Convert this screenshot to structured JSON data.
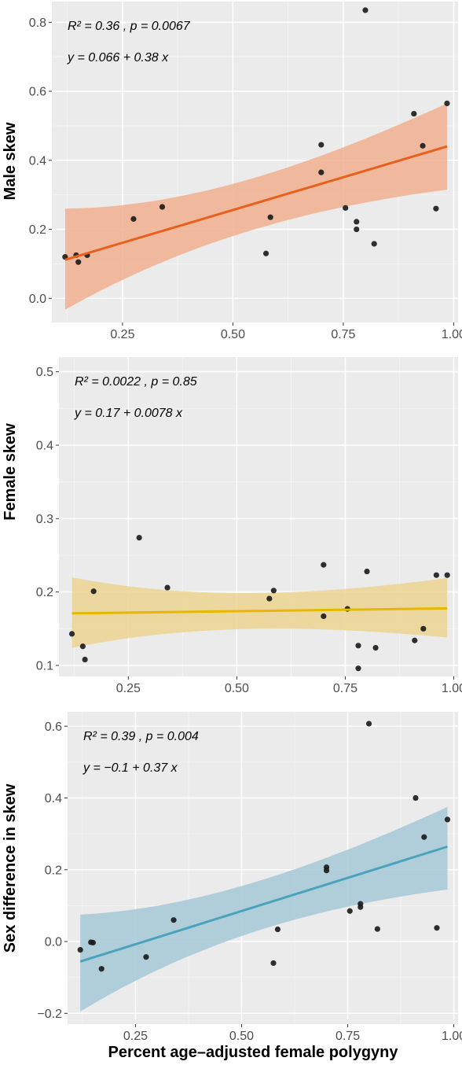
{
  "xlabel": "Percent age–adjusted female polygyny",
  "chart_data": [
    {
      "type": "scatter",
      "ylabel": "Male skew",
      "annotations": [
        "R² = 0.36 , p = 0.0067",
        "y = 0.066 + 0.38 x"
      ],
      "xlim": [
        0.09,
        1.01
      ],
      "ylim": [
        -0.07,
        0.86
      ],
      "xticks": [
        "0.25",
        "0.50",
        "0.75",
        "1.00"
      ],
      "yticks": [
        "0.0",
        "0.2",
        "0.4",
        "0.6",
        "0.8"
      ],
      "fit": {
        "intercept": 0.066,
        "slope": 0.38,
        "x_range": [
          0.12,
          0.985
        ],
        "ci_low": [
          -0.033,
          0.315
        ],
        "ci_high": [
          0.26,
          0.565
        ],
        "color": "#e8601c",
        "band_color": "#f1b08f"
      },
      "points": [
        [
          0.12,
          0.12
        ],
        [
          0.145,
          0.125
        ],
        [
          0.15,
          0.105
        ],
        [
          0.17,
          0.125
        ],
        [
          0.275,
          0.23
        ],
        [
          0.34,
          0.265
        ],
        [
          0.575,
          0.13
        ],
        [
          0.585,
          0.235
        ],
        [
          0.7,
          0.445
        ],
        [
          0.7,
          0.365
        ],
        [
          0.755,
          0.262
        ],
        [
          0.78,
          0.222
        ],
        [
          0.78,
          0.2
        ],
        [
          0.8,
          0.835
        ],
        [
          0.82,
          0.158
        ],
        [
          0.91,
          0.535
        ],
        [
          0.93,
          0.442
        ],
        [
          0.96,
          0.26
        ],
        [
          0.985,
          0.565
        ]
      ]
    },
    {
      "type": "scatter",
      "ylabel": "Female skew",
      "annotations": [
        "R² = 0.0022 , p = 0.85",
        "y = 0.17 + 0.0078 x"
      ],
      "xlim": [
        0.09,
        1.01
      ],
      "ylim": [
        0.085,
        0.52
      ],
      "xticks": [
        "0.25",
        "0.50",
        "0.75",
        "1.00"
      ],
      "yticks": [
        "0.1",
        "0.2",
        "0.3",
        "0.4",
        "0.5"
      ],
      "fit": {
        "intercept": 0.17,
        "slope": 0.0078,
        "x_range": [
          0.12,
          0.985
        ],
        "ci_low": [
          0.124,
          0.138
        ],
        "ci_high": [
          0.22,
          0.219
        ],
        "color": "#e6b800",
        "band_color": "#ecd491"
      },
      "points": [
        [
          0.12,
          0.143
        ],
        [
          0.145,
          0.126
        ],
        [
          0.15,
          0.108
        ],
        [
          0.17,
          0.201
        ],
        [
          0.275,
          0.274
        ],
        [
          0.34,
          0.206
        ],
        [
          0.575,
          0.191
        ],
        [
          0.585,
          0.202
        ],
        [
          0.7,
          0.237
        ],
        [
          0.7,
          0.167
        ],
        [
          0.755,
          0.177
        ],
        [
          0.78,
          0.127
        ],
        [
          0.78,
          0.096
        ],
        [
          0.8,
          0.228
        ],
        [
          0.82,
          0.124
        ],
        [
          0.91,
          0.134
        ],
        [
          0.93,
          0.15
        ],
        [
          0.96,
          0.223
        ],
        [
          0.985,
          0.223
        ]
      ]
    },
    {
      "type": "scatter",
      "ylabel": "Sex difference in skew",
      "annotations": [
        "R² = 0.39 , p = 0.004",
        "y = −0.1 + 0.37 x"
      ],
      "xlim": [
        0.09,
        1.01
      ],
      "ylim": [
        -0.23,
        0.64
      ],
      "xticks": [
        "0.25",
        "0.50",
        "0.75",
        "1.00"
      ],
      "yticks": [
        "−0.2",
        "0.0",
        "0.2",
        "0.4",
        "0.6"
      ],
      "fit": {
        "intercept": -0.1,
        "slope": 0.37,
        "x_range": [
          0.12,
          0.985
        ],
        "ci_low": [
          -0.195,
          0.145
        ],
        "ci_high": [
          0.075,
          0.375
        ],
        "color": "#4aa3bd",
        "band_color": "#a6c8d7"
      },
      "points": [
        [
          0.12,
          -0.023
        ],
        [
          0.145,
          -0.002
        ],
        [
          0.15,
          -0.003
        ],
        [
          0.17,
          -0.076
        ],
        [
          0.275,
          -0.043
        ],
        [
          0.34,
          0.06
        ],
        [
          0.575,
          -0.06
        ],
        [
          0.585,
          0.034
        ],
        [
          0.7,
          0.207
        ],
        [
          0.7,
          0.198
        ],
        [
          0.755,
          0.085
        ],
        [
          0.78,
          0.105
        ],
        [
          0.78,
          0.096
        ],
        [
          0.8,
          0.607
        ],
        [
          0.82,
          0.035
        ],
        [
          0.91,
          0.4
        ],
        [
          0.93,
          0.291
        ],
        [
          0.96,
          0.038
        ],
        [
          0.985,
          0.34
        ]
      ]
    }
  ]
}
